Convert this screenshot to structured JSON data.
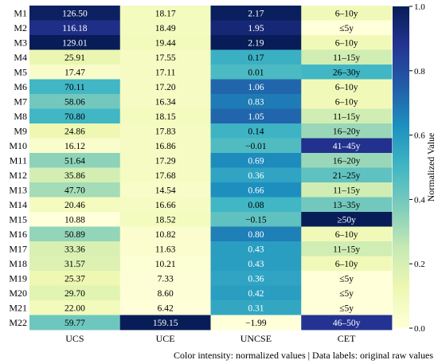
{
  "chart_data": {
    "type": "heatmap",
    "columns": [
      "UCS",
      "UCE",
      "UNCSE",
      "CET"
    ],
    "rows": [
      "M1",
      "M2",
      "M3",
      "M4",
      "M5",
      "M6",
      "M7",
      "M8",
      "M9",
      "M10",
      "M11",
      "M12",
      "M13",
      "M14",
      "M15",
      "M16",
      "M17",
      "M18",
      "M19",
      "M20",
      "M21",
      "M22"
    ],
    "labels": [
      [
        "126.50",
        "18.17",
        "2.17",
        "6–10y"
      ],
      [
        "116.18",
        "18.49",
        "1.95",
        "≤5y"
      ],
      [
        "129.01",
        "19.44",
        "2.19",
        "6–10y"
      ],
      [
        "25.91",
        "17.55",
        "0.17",
        "11–15y"
      ],
      [
        "17.47",
        "17.11",
        "0.01",
        "26–30y"
      ],
      [
        "70.11",
        "17.20",
        "1.06",
        "6–10y"
      ],
      [
        "58.06",
        "16.34",
        "0.83",
        "6–10y"
      ],
      [
        "70.80",
        "18.15",
        "1.05",
        "11–15y"
      ],
      [
        "24.86",
        "17.83",
        "0.14",
        "16–20y"
      ],
      [
        "16.12",
        "16.86",
        "−0.01",
        "41–45y"
      ],
      [
        "51.64",
        "17.29",
        "0.69",
        "16–20y"
      ],
      [
        "35.86",
        "17.68",
        "0.36",
        "21–25y"
      ],
      [
        "47.70",
        "14.54",
        "0.66",
        "11–15y"
      ],
      [
        "20.46",
        "16.66",
        "0.08",
        "13–35y"
      ],
      [
        "10.88",
        "18.52",
        "−0.15",
        "≥50y"
      ],
      [
        "50.89",
        "10.82",
        "0.80",
        "6–10y"
      ],
      [
        "33.36",
        "11.63",
        "0.43",
        "11–15y"
      ],
      [
        "31.57",
        "10.21",
        "0.43",
        "6–10y"
      ],
      [
        "25.37",
        "7.33",
        "0.36",
        "≤5y"
      ],
      [
        "29.70",
        "8.60",
        "0.42",
        "≤5y"
      ],
      [
        "22.00",
        "6.42",
        "0.31",
        "≤5y"
      ],
      [
        "59.77",
        "159.15",
        "−1.99",
        "46–50y"
      ]
    ],
    "normalized": [
      [
        0.98,
        0.08,
        0.99,
        0.1
      ],
      [
        0.9,
        0.08,
        0.94,
        0.0
      ],
      [
        1.0,
        0.09,
        1.0,
        0.1
      ],
      [
        0.13,
        0.07,
        0.52,
        0.22
      ],
      [
        0.05,
        0.07,
        0.48,
        0.5
      ],
      [
        0.5,
        0.07,
        0.73,
        0.1
      ],
      [
        0.4,
        0.07,
        0.68,
        0.1
      ],
      [
        0.5,
        0.08,
        0.73,
        0.22
      ],
      [
        0.12,
        0.07,
        0.51,
        0.33
      ],
      [
        0.04,
        0.07,
        0.47,
        0.89
      ],
      [
        0.35,
        0.07,
        0.64,
        0.33
      ],
      [
        0.21,
        0.07,
        0.56,
        0.44
      ],
      [
        0.31,
        0.05,
        0.63,
        0.22
      ],
      [
        0.08,
        0.07,
        0.5,
        0.4
      ],
      [
        0.0,
        0.08,
        0.44,
        1.0
      ],
      [
        0.34,
        0.03,
        0.67,
        0.1
      ],
      [
        0.19,
        0.03,
        0.58,
        0.22
      ],
      [
        0.18,
        0.02,
        0.58,
        0.1
      ],
      [
        0.12,
        0.01,
        0.56,
        0.0
      ],
      [
        0.16,
        0.01,
        0.58,
        0.0
      ],
      [
        0.09,
        0.0,
        0.55,
        0.0
      ],
      [
        0.41,
        1.0,
        0.0,
        0.88
      ]
    ],
    "colorbar": {
      "label": "Normalized Value",
      "range": [
        0.0,
        1.0
      ],
      "ticks": [
        "0.0",
        "0.2",
        "0.4",
        "0.6",
        "0.8",
        "1.0"
      ],
      "colormap": "YlGnBu"
    },
    "footnote": "Color intensity: normalized values | Data labels: original raw values"
  }
}
